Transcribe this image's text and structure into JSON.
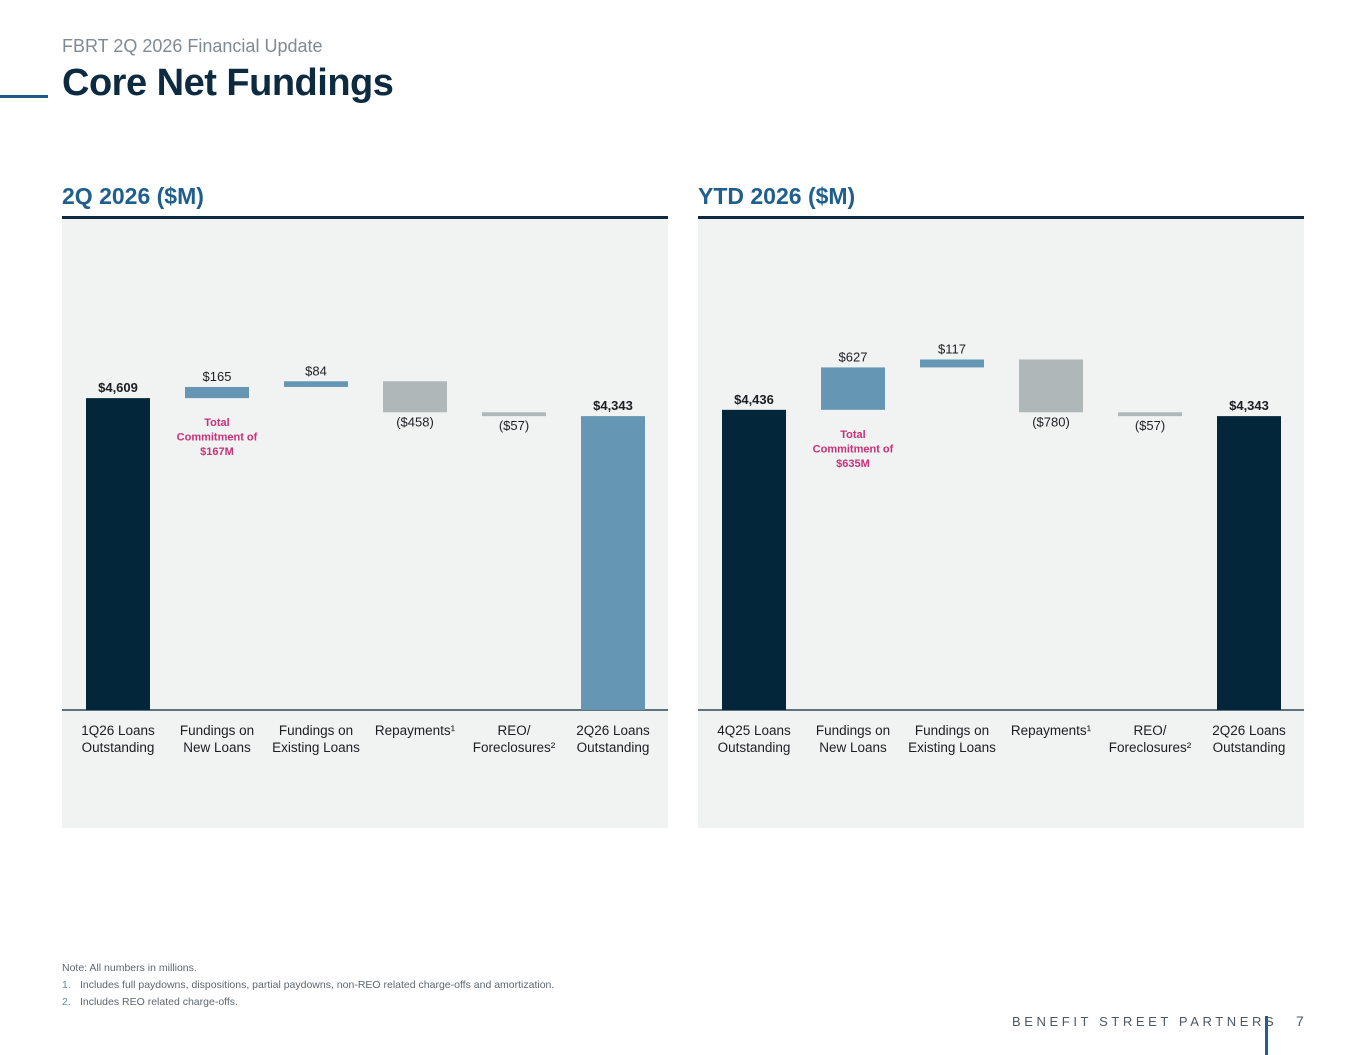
{
  "header": {
    "subtitle": "FBRT 2Q 2026 Financial Update",
    "title": "Core Net Fundings"
  },
  "colors": {
    "dark_navy": "#03263a",
    "steel_blue": "#6597b4",
    "gray": "#aeb8b8",
    "panel_bg": "#f1f2f2",
    "accent_pink": "#c8327a",
    "title_blue": "#1e5f8e"
  },
  "chart_data": [
    {
      "type": "waterfall",
      "title": "2Q 2026 ($M)",
      "categories": [
        "1Q26 Loans\nOutstanding",
        "Fundings on\nNew Loans",
        "Fundings on\nExisting Loans",
        "Repayments¹",
        "REO/\nForeclosures²",
        "2Q26 Loans\nOutstanding"
      ],
      "values": [
        4609,
        165,
        84,
        -458,
        -57,
        4343
      ],
      "value_labels": [
        "$4,609",
        "$165",
        "$84",
        "($458)",
        "($57)",
        "$4,343"
      ],
      "bar_kinds": [
        "total",
        "increase",
        "increase",
        "decrease",
        "decrease",
        "total"
      ],
      "bar_colors": [
        "#03263a",
        "#6597b4",
        "#6597b4",
        "#aeb8b8",
        "#aeb8b8",
        "#6597b4"
      ],
      "annotation": "Total\nCommitment of\n$167M",
      "annotation_index": 1
    },
    {
      "type": "waterfall",
      "title": "YTD 2026 ($M)",
      "categories": [
        "4Q25 Loans\nOutstanding",
        "Fundings on\nNew Loans",
        "Fundings on\nExisting Loans",
        "Repayments¹",
        "REO/\nForeclosures²",
        "2Q26 Loans\nOutstanding"
      ],
      "values": [
        4436,
        627,
        117,
        -780,
        -57,
        4343
      ],
      "value_labels": [
        "$4,436",
        "$627",
        "$117",
        "($780)",
        "($57)",
        "$4,343"
      ],
      "bar_kinds": [
        "total",
        "increase",
        "increase",
        "decrease",
        "decrease",
        "total"
      ],
      "bar_colors": [
        "#03263a",
        "#6597b4",
        "#6597b4",
        "#aeb8b8",
        "#aeb8b8",
        "#03263a"
      ],
      "annotation": "Total\nCommitment of\n$635M",
      "annotation_index": 1
    }
  ],
  "notes": {
    "intro": "Note: All numbers in millions.",
    "items": [
      {
        "num": "1.",
        "text": "Includes full paydowns, dispositions, partial paydowns, non-REO related charge-offs and amortization."
      },
      {
        "num": "2.",
        "text": "Includes REO related charge-offs."
      }
    ]
  },
  "footer": {
    "brand": "BENEFIT STREET PARTNERS",
    "page_number": "7"
  }
}
